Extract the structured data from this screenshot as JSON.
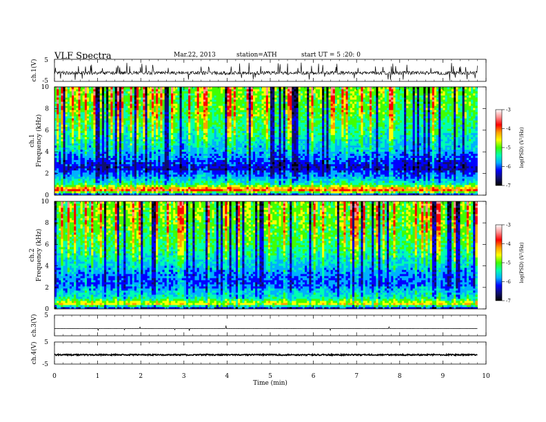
{
  "header": {
    "title": "VLF  Spectra",
    "date": "Mar.22, 2013",
    "station": "station=ATH",
    "start": "start  UT  =   5  :20: 0"
  },
  "colors": {
    "colorbar_stops": [
      "#000000",
      "#10106f",
      "#0000ff",
      "#00b0ff",
      "#00ffb0",
      "#40ff00",
      "#ffff00",
      "#ffa000",
      "#ff0000",
      "#ff9090",
      "#ffffff"
    ]
  },
  "chart_data": [
    {
      "type": "line",
      "panel": "ch1-waveform",
      "ylabel": "ch.1(V)",
      "yticks": [
        "5",
        "-5"
      ],
      "ylim": [
        -5,
        5
      ],
      "xlim": [
        0,
        10
      ],
      "data_xmax": 9.8,
      "description_values": {
        "baseline": -1.2,
        "noise_amplitude": 0.8,
        "spike_max": 4.5,
        "spike_min": -3.0
      }
    },
    {
      "type": "heatmap",
      "panel": "ch1-spectrogram",
      "ylabel_top": "ch.1",
      "ylabel": "Frequency  (kHz)",
      "yticks": [
        "0",
        "2",
        "4",
        "6",
        "8",
        "10"
      ],
      "ylim": [
        0,
        10
      ],
      "xlim": [
        0,
        10
      ],
      "data_xmax": 9.8,
      "colorbar": {
        "label": "log(PSD) (V²/Hz)",
        "ticks": [
          "-3",
          "-4",
          "-5",
          "-6",
          "-7"
        ],
        "range": [
          -7,
          -3
        ]
      },
      "band_profile_log_psd": [
        {
          "f_khz": 0.0,
          "value": -6.5
        },
        {
          "f_khz": 0.5,
          "value": -3.8
        },
        {
          "f_khz": 1.0,
          "value": -5.3
        },
        {
          "f_khz": 2.5,
          "value": -6.4
        },
        {
          "f_khz": 4.0,
          "value": -5.8
        },
        {
          "f_khz": 6.0,
          "value": -5.3
        },
        {
          "f_khz": 8.0,
          "value": -5.0
        },
        {
          "f_khz": 10.0,
          "value": -4.9
        }
      ]
    },
    {
      "type": "heatmap",
      "panel": "ch2-spectrogram",
      "ylabel_top": "ch.2",
      "ylabel": "Frequency  (kHz)",
      "yticks": [
        "0",
        "2",
        "4",
        "6",
        "8",
        "10"
      ],
      "ylim": [
        0,
        10
      ],
      "xlim": [
        0,
        10
      ],
      "data_xmax": 9.8,
      "colorbar": {
        "label": "log(PSD) (V²/Hz)",
        "ticks": [
          "-3",
          "-4",
          "-5",
          "-6",
          "-7"
        ],
        "range": [
          -7,
          -3
        ]
      },
      "band_profile_log_psd": [
        {
          "f_khz": 0.0,
          "value": -6.6
        },
        {
          "f_khz": 0.5,
          "value": -4.5
        },
        {
          "f_khz": 1.0,
          "value": -5.4
        },
        {
          "f_khz": 2.5,
          "value": -6.1
        },
        {
          "f_khz": 4.0,
          "value": -5.7
        },
        {
          "f_khz": 6.0,
          "value": -5.2
        },
        {
          "f_khz": 8.0,
          "value": -5.0
        },
        {
          "f_khz": 10.0,
          "value": -4.9
        }
      ]
    },
    {
      "type": "line",
      "panel": "ch3-waveform",
      "ylabel": "ch.3(V)",
      "yticks": [
        "5",
        "-5"
      ],
      "ylim": [
        -5,
        5
      ],
      "xlim": [
        0,
        10
      ],
      "data_xmax": 9.8,
      "description_values": {
        "baseline": -1.5,
        "spike_max": 0.5
      }
    },
    {
      "type": "line",
      "panel": "ch4-waveform",
      "ylabel": "ch.4(V)",
      "yticks": [
        "5",
        "-5"
      ],
      "ylim": [
        -5,
        5
      ],
      "xlim": [
        0,
        10
      ],
      "data_xmax": 9.8,
      "description_values": {
        "baseline": -0.8,
        "noise_amplitude": 0.3
      }
    }
  ],
  "xaxis": {
    "label": "Time  (min)",
    "ticks": [
      "0",
      "1",
      "2",
      "3",
      "4",
      "5",
      "6",
      "7",
      "8",
      "9",
      "10"
    ]
  }
}
